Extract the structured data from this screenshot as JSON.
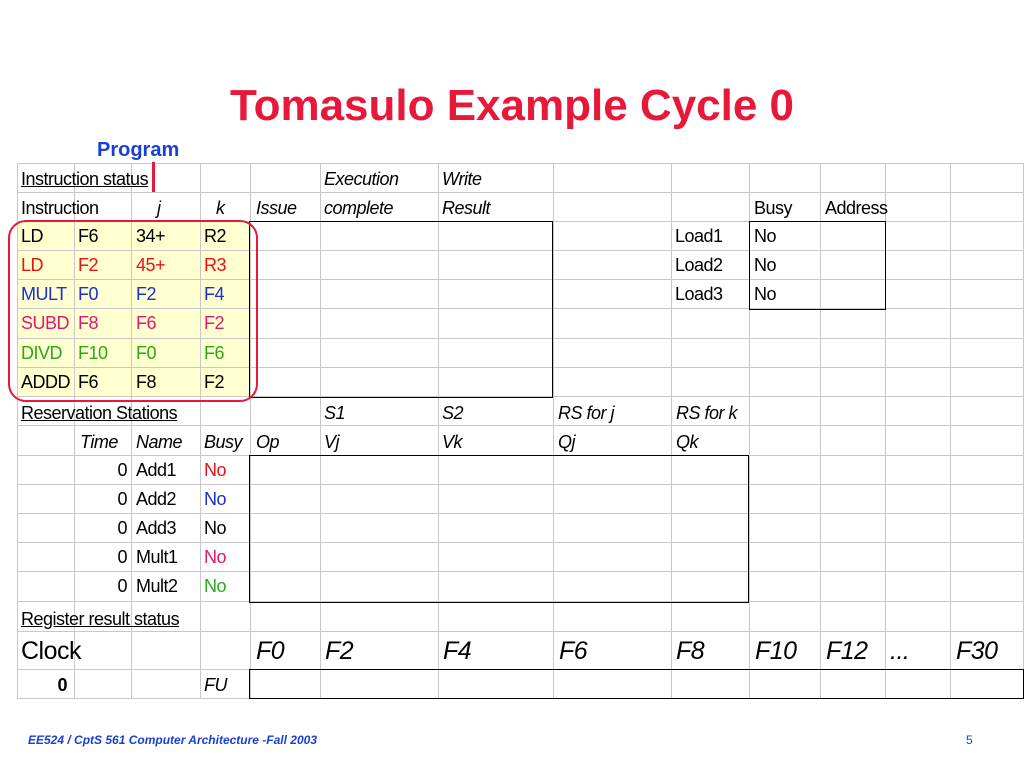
{
  "title": "Tomasulo Example Cycle 0",
  "program_label": "Program",
  "instr_header": {
    "status": "Instruction status",
    "instruction": "Instruction",
    "j": "j",
    "k": "k",
    "issue": "Issue",
    "exec_top": "Execution",
    "exec_bottom": "complete",
    "write_top": "Write",
    "write_bottom": "Result",
    "busy": "Busy",
    "address": "Address"
  },
  "instructions": [
    {
      "op": "LD",
      "dst": "F6",
      "j": "34+",
      "k": "R2",
      "color": "#000000"
    },
    {
      "op": "LD",
      "dst": "F2",
      "j": "45+",
      "k": "R3",
      "color": "#e8101a"
    },
    {
      "op": "MULT",
      "dst": "F0",
      "j": "F2",
      "k": "F4",
      "color": "#1a2fd4"
    },
    {
      "op": "SUBD",
      "dst": "F8",
      "j": "F6",
      "k": "F2",
      "color": "#e0186e"
    },
    {
      "op": "DIVD",
      "dst": "F10",
      "j": "F0",
      "k": "F6",
      "color": "#2aa81a"
    },
    {
      "op": "ADDD",
      "dst": "F6",
      "j": "F8",
      "k": "F2",
      "color": "#000000"
    }
  ],
  "load_buffers": [
    {
      "name": "Load1",
      "busy": "No"
    },
    {
      "name": "Load2",
      "busy": "No"
    },
    {
      "name": "Load3",
      "busy": "No"
    }
  ],
  "rs_header": {
    "title": "Reservation Stations",
    "s1": "S1",
    "s2": "S2",
    "rs_j": "RS for j",
    "rs_k": "RS for k",
    "time": "Time",
    "name": "Name",
    "busy": "Busy",
    "op": "Op",
    "vj": "Vj",
    "vk": "Vk",
    "qj": "Qj",
    "qk": "Qk"
  },
  "reservation_stations": [
    {
      "time": "0",
      "name": "Add1",
      "busy": "No",
      "busy_color": "#e8101a"
    },
    {
      "time": "0",
      "name": "Add2",
      "busy": "No",
      "busy_color": "#1a2fd4"
    },
    {
      "time": "0",
      "name": "Add3",
      "busy": "No",
      "busy_color": "#000000"
    },
    {
      "time": "0",
      "name": "Mult1",
      "busy": "No",
      "busy_color": "#e0186e"
    },
    {
      "time": "0",
      "name": "Mult2",
      "busy": "No",
      "busy_color": "#2aa81a"
    }
  ],
  "register_status": {
    "title": "Register result status",
    "clock_label": "Clock",
    "clock_value": "0",
    "fu_label": "FU",
    "registers": [
      "F0",
      "F2",
      "F4",
      "F6",
      "F8",
      "F10",
      "F12",
      "...",
      "F30"
    ]
  },
  "footer": {
    "course": "EE524 / CptS 561 Computer Architecture  -Fall 2003",
    "page": "5"
  }
}
